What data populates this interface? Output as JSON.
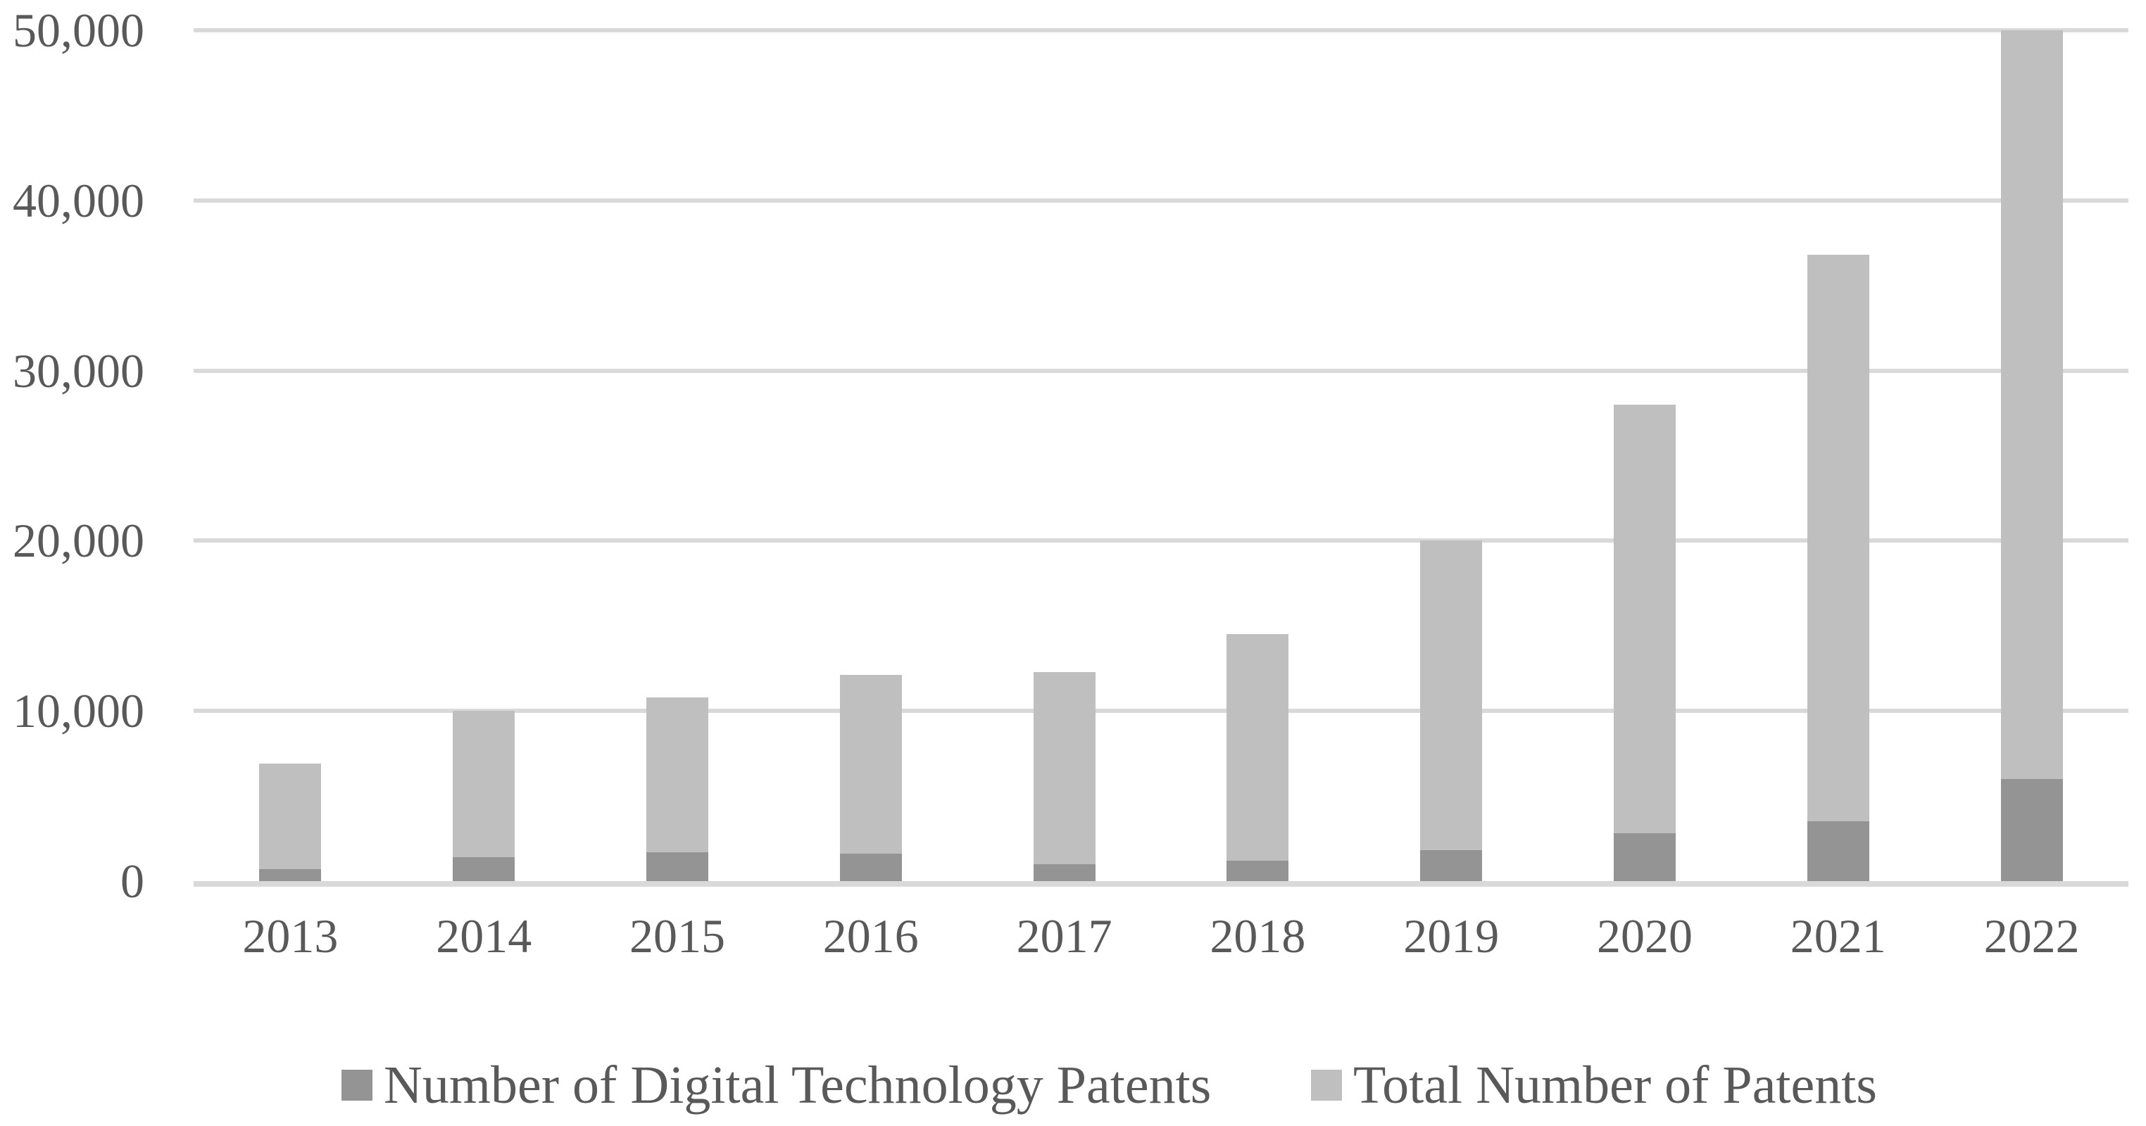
{
  "chart_data": {
    "type": "bar",
    "subtype": "stacked-column",
    "title": "",
    "xlabel": "",
    "ylabel": "",
    "categories": [
      "2013",
      "2014",
      "2015",
      "2016",
      "2017",
      "2018",
      "2019",
      "2020",
      "2021",
      "2022"
    ],
    "series": [
      {
        "name": "Number of Digital Technology Patents",
        "role": "bottom-dark-segment",
        "values": [
          700,
          1400,
          1700,
          1600,
          1000,
          1200,
          1800,
          2800,
          3500,
          6000
        ]
      },
      {
        "name": "Total Number of Patents",
        "role": "bar-top-light-segment",
        "values": [
          6900,
          10000,
          10800,
          12100,
          12300,
          14500,
          20000,
          28000,
          36800,
          50000
        ]
      }
    ],
    "ylim": [
      0,
      50000
    ],
    "yticks": [
      0,
      10000,
      20000,
      30000,
      40000,
      50000
    ],
    "ytick_labels": [
      "0",
      "10,000",
      "20,000",
      "30,000",
      "40,000",
      "50,000"
    ],
    "grid": true,
    "legend_position": "bottom"
  },
  "colors": {
    "digital_series": "#949494",
    "total_series": "#bfbfbf",
    "gridline": "#d9d9d9",
    "axis_line": "#d9d9d9",
    "text": "#595959",
    "background": "#ffffff"
  },
  "legend": {
    "items": [
      {
        "label": "Number of Digital Technology Patents",
        "color": "#949494"
      },
      {
        "label": "Total Number of Patents",
        "color": "#bfbfbf"
      }
    ]
  }
}
